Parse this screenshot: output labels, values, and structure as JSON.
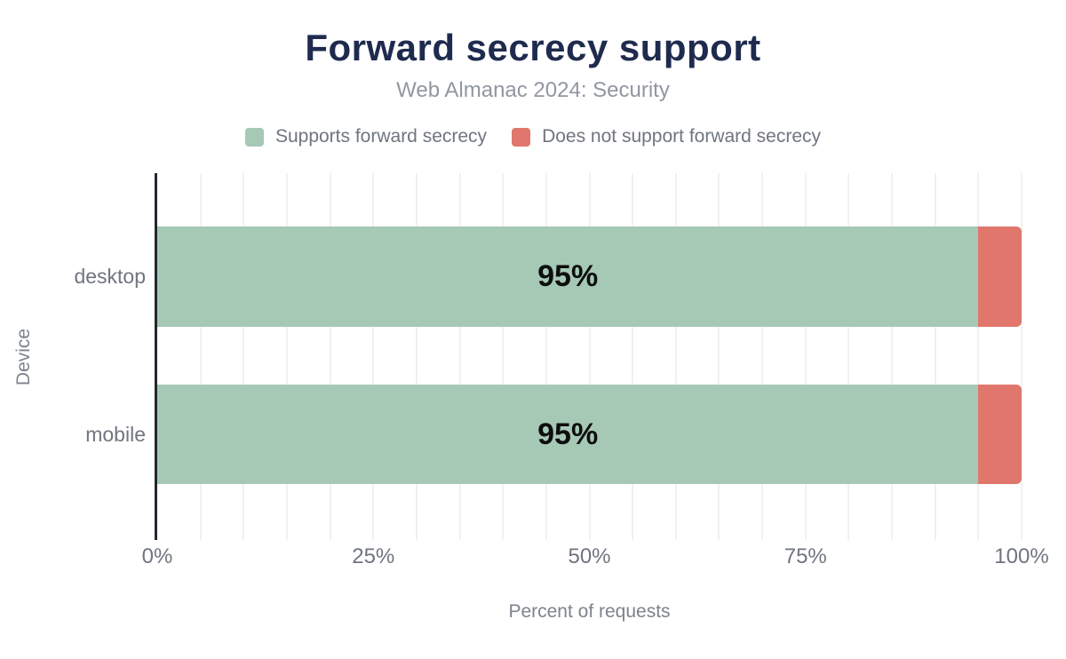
{
  "chart_data": {
    "type": "bar",
    "orientation": "horizontal",
    "stacked": true,
    "title": "Forward secrecy support",
    "subtitle": "Web Almanac 2024: Security",
    "xlabel": "Percent of requests",
    "ylabel": "Device",
    "categories": [
      "desktop",
      "mobile"
    ],
    "series": [
      {
        "name": "Supports forward secrecy",
        "color": "#a5c9b5",
        "values": [
          95,
          95
        ]
      },
      {
        "name": "Does not support forward secrecy",
        "color": "#e1766d",
        "values": [
          5,
          5
        ]
      }
    ],
    "bar_labels": [
      "95%",
      "95%"
    ],
    "xlim": [
      0,
      100
    ],
    "xtick_labels": [
      "0%",
      "25%",
      "50%",
      "75%",
      "100%"
    ],
    "xtick_values": [
      0,
      25,
      50,
      75,
      100
    ],
    "grid_interval_percent": 5,
    "grid": true,
    "legend_position": "top"
  },
  "colors": {
    "background": "#ffffff",
    "title": "#1f2b4e",
    "subtitle": "#9197a0",
    "axis_text": "#6f757f",
    "axis_label_text": "#7d838c",
    "axis_line": "#23272e",
    "gridline": "#f1f1f4",
    "bar_value_label": "#0e0e0e",
    "supports_green": "#a5c9b5",
    "not_supports_red": "#e1766d"
  }
}
